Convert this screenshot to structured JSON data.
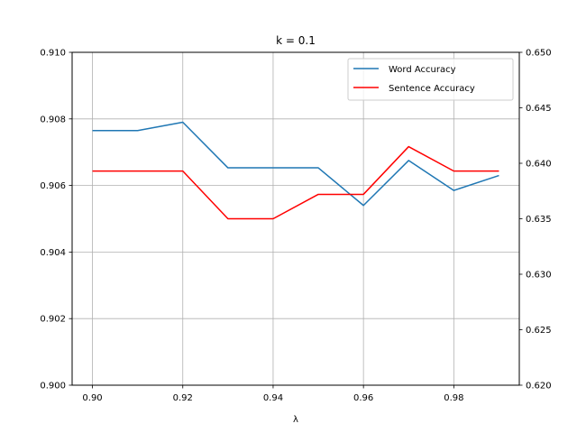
{
  "chart_data": {
    "type": "line",
    "title": "k = 0.1",
    "xlabel": "λ",
    "ylabel": "",
    "x": [
      0.9,
      0.91,
      0.92,
      0.93,
      0.94,
      0.95,
      0.96,
      0.97,
      0.98,
      0.99
    ],
    "xlim": [
      0.8955,
      0.9945
    ],
    "xticks": [
      0.9,
      0.92,
      0.94,
      0.96,
      0.98
    ],
    "xtick_labels": [
      "0.90",
      "0.92",
      "0.94",
      "0.96",
      "0.98"
    ],
    "left_axis": {
      "ylim": [
        0.9,
        0.91
      ],
      "ticks": [
        0.9,
        0.902,
        0.904,
        0.906,
        0.908,
        0.91
      ],
      "tick_labels": [
        "0.900",
        "0.902",
        "0.904",
        "0.906",
        "0.908",
        "0.910"
      ]
    },
    "right_axis": {
      "ylim": [
        0.62,
        0.65
      ],
      "ticks": [
        0.62,
        0.625,
        0.63,
        0.635,
        0.64,
        0.645,
        0.65
      ],
      "tick_labels": [
        "0.620",
        "0.625",
        "0.630",
        "0.635",
        "0.640",
        "0.645",
        "0.650"
      ]
    },
    "grid": true,
    "legend_position": "top-right",
    "series": [
      {
        "name": "Word Accuracy",
        "axis": "left",
        "color": "#1f77b4",
        "values": [
          0.90765,
          0.90765,
          0.9079,
          0.90653,
          0.90653,
          0.90653,
          0.9054,
          0.90675,
          0.90585,
          0.9063
        ]
      },
      {
        "name": "Sentence Accuracy",
        "axis": "right",
        "color": "#ff0000",
        "values": [
          0.6393,
          0.6393,
          0.6393,
          0.635,
          0.635,
          0.6372,
          0.6372,
          0.6415,
          0.6393,
          0.6393
        ]
      }
    ]
  }
}
